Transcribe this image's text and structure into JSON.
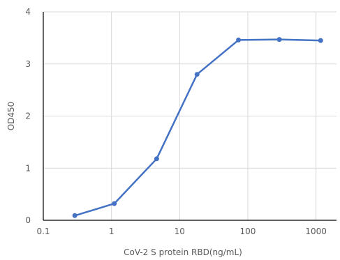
{
  "chart_data": {
    "type": "line",
    "title": "",
    "xlabel": "CoV-2 S protein RBD(ng/mL)",
    "ylabel": "OD450",
    "x_scale": "log",
    "xlim": [
      0.1,
      2000
    ],
    "ylim": [
      0,
      4
    ],
    "x_ticks": [
      0.1,
      1,
      10,
      100,
      1000
    ],
    "x_tick_labels": [
      "0.1",
      "1",
      "10",
      "100",
      "1000"
    ],
    "y_ticks": [
      0,
      1,
      2,
      3,
      4
    ],
    "y_tick_labels": [
      "0",
      "1",
      "2",
      "3",
      "4"
    ],
    "grid": true,
    "series": [
      {
        "x": [
          0.29,
          1.1,
          4.6,
          18,
          73,
          290,
          1170
        ],
        "y": [
          0.09,
          0.32,
          1.18,
          2.8,
          3.46,
          3.47,
          3.45
        ],
        "color": "#4472C4",
        "marker": "circle"
      }
    ]
  }
}
